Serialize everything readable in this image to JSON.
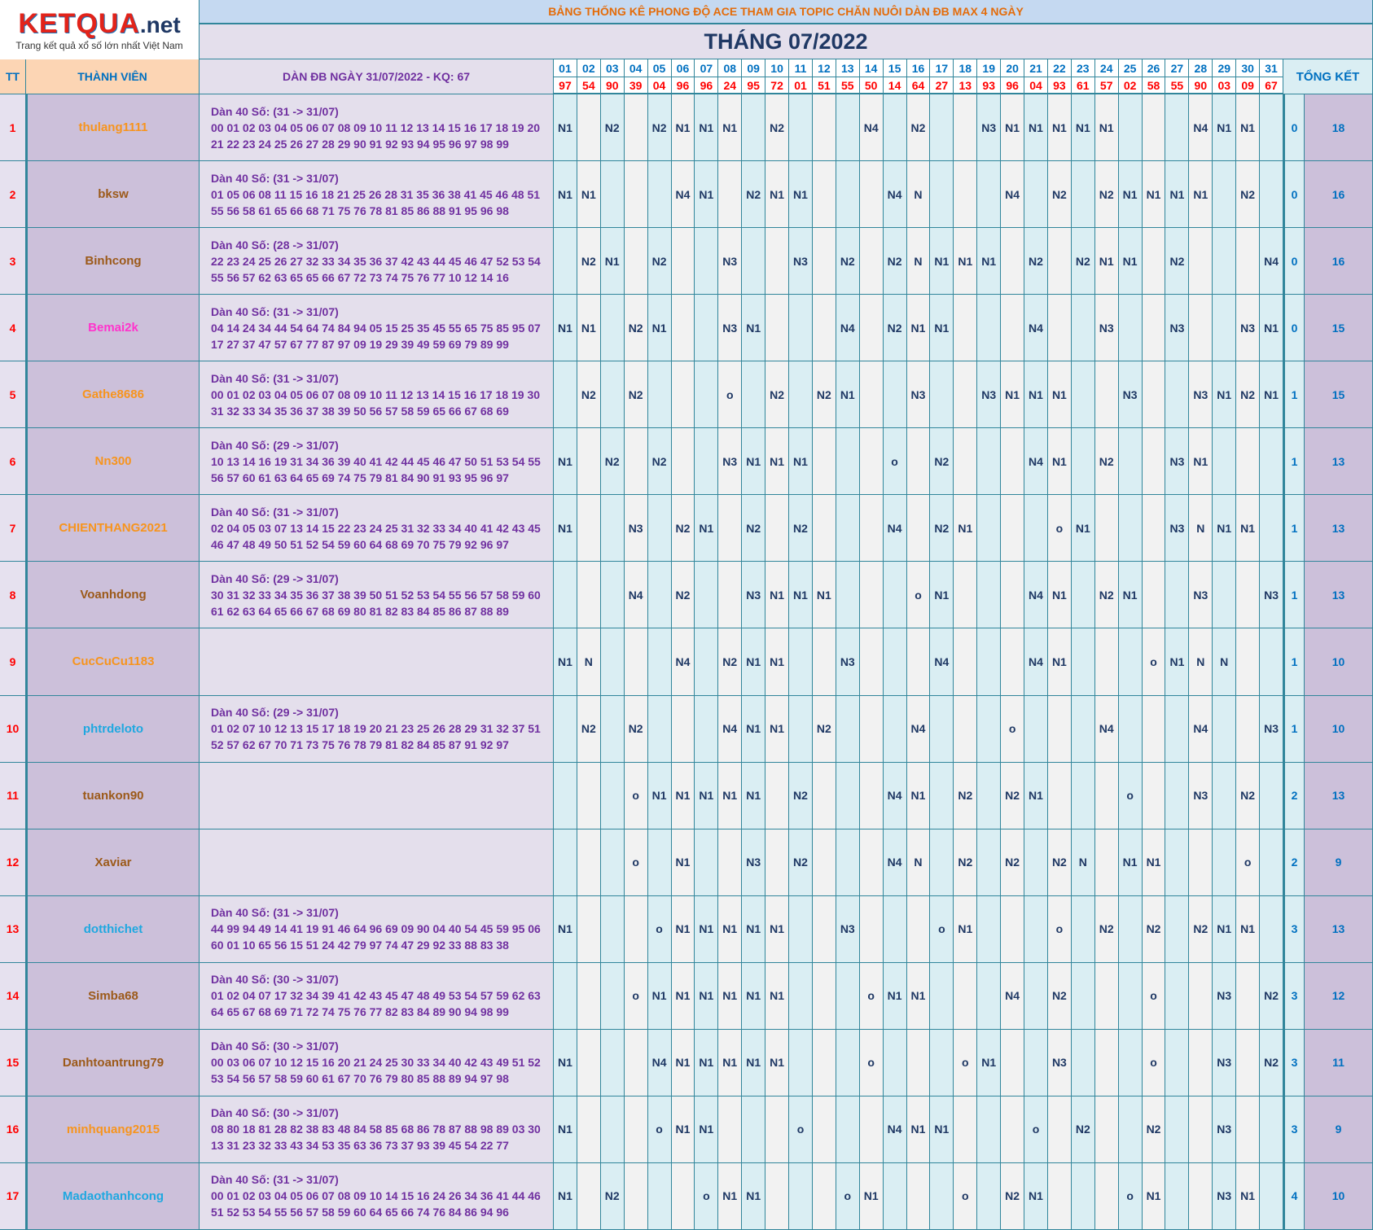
{
  "header": {
    "logo": "KETQUA",
    "logo_suffix": ".net",
    "tagline": "Trang kết quả xổ số lớn nhất Việt Nam",
    "title": "BẢNG THỐNG KÊ PHONG ĐỘ ACE THAM GIA TOPIC CHĂN NUÔI DÀN ĐB MAX 4 NGÀY",
    "month": "THÁNG 07/2022"
  },
  "table": {
    "columns": {
      "tt": "TT",
      "member": "THÀNH VIÊN",
      "dan": "DÀN ĐB NGÀY 31/07/2022 - KQ: 67",
      "summary": "TỔNG KẾT"
    },
    "days": [
      "01",
      "02",
      "03",
      "04",
      "05",
      "06",
      "07",
      "08",
      "09",
      "10",
      "11",
      "12",
      "13",
      "14",
      "15",
      "16",
      "17",
      "18",
      "19",
      "20",
      "21",
      "22",
      "23",
      "24",
      "25",
      "26",
      "27",
      "28",
      "29",
      "30",
      "31"
    ],
    "results": [
      "97",
      "54",
      "90",
      "39",
      "04",
      "96",
      "96",
      "24",
      "95",
      "72",
      "01",
      "51",
      "55",
      "50",
      "14",
      "64",
      "27",
      "13",
      "93",
      "96",
      "04",
      "93",
      "61",
      "57",
      "02",
      "58",
      "55",
      "90",
      "03",
      "09",
      "67"
    ],
    "rows": [
      {
        "tt": 1,
        "member": "thulang1111",
        "color": "#f7941d",
        "dan": [
          "Dàn 40 Số: (31 -> 31/07)",
          "00 01 02 03 04 05 06 07 08 09 10 11 12 13 14 15 16 17 18 19 20",
          "21 22 23 24 25 26 27 28 29 90 91 92 93 94 95 96 97 98 99"
        ],
        "marks": [
          "N1",
          null,
          "N2",
          null,
          "N2",
          "N1",
          "N1",
          "N1",
          null,
          "N2",
          null,
          null,
          null,
          "N4",
          null,
          "N2",
          null,
          null,
          "N3",
          "N1",
          "N1",
          "N1",
          "N1",
          "N1",
          null,
          null,
          null,
          "N4",
          "N1",
          "N1",
          null
        ],
        "miss": 0,
        "total": 18
      },
      {
        "tt": 2,
        "member": "bksw",
        "color": "#9c5a1a",
        "dan": [
          "Dàn 40 Số: (31 -> 31/07)",
          "01 05 06 08 11 15 16 18 21 25 26 28 31 35 36 38 41 45 46 48 51",
          "55 56 58 61 65 66 68 71 75 76 78 81 85 86 88 91 95 96 98"
        ],
        "marks": [
          "N1",
          "N1",
          null,
          null,
          null,
          "N4",
          "N1",
          null,
          "N2",
          "N1",
          "N1",
          null,
          null,
          null,
          "N4",
          "N",
          null,
          null,
          null,
          "N4",
          null,
          "N2",
          null,
          "N2",
          "N1",
          "N1",
          "N1",
          "N1",
          null,
          "N2",
          null
        ],
        "miss": 0,
        "total": 16
      },
      {
        "tt": 3,
        "member": "Binhcong",
        "color": "#9c5a1a",
        "dan": [
          "Dàn 40 Số: (28 -> 31/07)",
          "22 23 24 25 26 27 32 33 34 35 36 37 42 43 44 45 46 47 52 53 54",
          "55 56 57 62 63 65 65 66 67 72 73 74 75 76 77 10 12 14 16"
        ],
        "marks": [
          null,
          "N2",
          "N1",
          null,
          "N2",
          null,
          null,
          "N3",
          null,
          null,
          "N3",
          null,
          "N2",
          null,
          "N2",
          "N",
          "N1",
          "N1",
          "N1",
          null,
          "N2",
          null,
          "N2",
          "N1",
          "N1",
          null,
          "N2",
          null,
          null,
          null,
          "N4"
        ],
        "miss": 0,
        "total": 16
      },
      {
        "tt": 4,
        "member": "Bemai2k",
        "color": "#ff33cc",
        "dan": [
          "Dàn 40 Số: (31 -> 31/07)",
          "04 14 24 34 44 54 64 74 84 94 05 15 25 35 45 55 65 75 85 95 07",
          "17 27 37 47 57 67 77 87 97 09 19 29 39 49 59 69 79 89 99"
        ],
        "marks": [
          "N1",
          "N1",
          null,
          "N2",
          "N1",
          null,
          null,
          "N3",
          "N1",
          null,
          null,
          null,
          "N4",
          null,
          "N2",
          "N1",
          "N1",
          null,
          null,
          null,
          "N4",
          null,
          null,
          "N3",
          null,
          null,
          "N3",
          null,
          null,
          "N3",
          "N1"
        ],
        "miss": 0,
        "total": 15
      },
      {
        "tt": 5,
        "member": "Gathe8686",
        "color": "#f7941d",
        "dan": [
          "Dàn 40 Số: (31 -> 31/07)",
          "00 01 02 03 04 05 06 07 08 09 10 11 12 13 14 15 16 17 18 19 30",
          "31 32 33 34 35 36 37 38 39 50 56 57 58 59 65 66 67 68 69"
        ],
        "marks": [
          null,
          "N2",
          null,
          "N2",
          null,
          null,
          null,
          "o",
          null,
          "N2",
          null,
          "N2",
          "N1",
          null,
          null,
          "N3",
          null,
          null,
          "N3",
          "N1",
          "N1",
          "N1",
          null,
          null,
          "N3",
          null,
          null,
          "N3",
          "N1",
          "N2",
          "N1"
        ],
        "miss": 1,
        "total": 15
      },
      {
        "tt": 6,
        "member": "Nn300",
        "color": "#f7941d",
        "dan": [
          "Dàn 40 Số: (29 -> 31/07)",
          "10 13 14 16 19 31 34 36 39 40 41 42 44 45 46 47 50 51 53 54 55",
          "56 57 60 61 63 64 65 69 74 75 79 81 84 90 91 93 95 96 97"
        ],
        "marks": [
          "N1",
          null,
          "N2",
          null,
          "N2",
          null,
          null,
          "N3",
          "N1",
          "N1",
          "N1",
          null,
          null,
          null,
          "o",
          null,
          "N2",
          null,
          null,
          null,
          "N4",
          "N1",
          null,
          "N2",
          null,
          null,
          "N3",
          "N1",
          null,
          null,
          null
        ],
        "miss": 1,
        "total": 13
      },
      {
        "tt": 7,
        "member": "CHIENTHANG2021",
        "color": "#f7941d",
        "dan": [
          "Dàn 40 Số: (31 -> 31/07)",
          "02 04 05 03 07 13 14 15 22 23 24 25 31 32 33 34 40 41 42 43 45",
          "46 47 48 49 50 51 52 54 59 60 64 68 69 70 75 79 92 96 97"
        ],
        "marks": [
          "N1",
          null,
          null,
          "N3",
          null,
          "N2",
          "N1",
          null,
          "N2",
          null,
          "N2",
          null,
          null,
          null,
          "N4",
          null,
          "N2",
          "N1",
          null,
          null,
          null,
          "o",
          "N1",
          null,
          null,
          null,
          "N3",
          "N",
          "N1",
          "N1",
          null
        ],
        "miss": 1,
        "total": 13
      },
      {
        "tt": 8,
        "member": "Voanhdong",
        "color": "#9c5a1a",
        "dan": [
          "Dàn 40 Số: (29 -> 31/07)",
          "30 31 32 33 34 35 36 37 38 39 50 51 52 53 54 55 56 57 58 59 60",
          "61 62 63 64 65 66 67 68 69 80 81 82 83 84 85 86 87 88 89"
        ],
        "marks": [
          null,
          null,
          null,
          "N4",
          null,
          "N2",
          null,
          null,
          "N3",
          "N1",
          "N1",
          "N1",
          null,
          null,
          null,
          "o",
          "N1",
          null,
          null,
          null,
          "N4",
          "N1",
          null,
          "N2",
          "N1",
          null,
          null,
          "N3",
          null,
          null,
          "N3"
        ],
        "miss": 1,
        "total": 13
      },
      {
        "tt": 9,
        "member": "CucCuCu1183",
        "color": "#f7941d",
        "dan": null,
        "marks": [
          "N1",
          "N",
          null,
          null,
          null,
          "N4",
          null,
          "N2",
          "N1",
          "N1",
          null,
          null,
          "N3",
          null,
          null,
          null,
          "N4",
          null,
          null,
          null,
          "N4",
          "N1",
          null,
          null,
          null,
          "o",
          "N1",
          "N",
          "N",
          null,
          null
        ],
        "miss": 1,
        "total": 10
      },
      {
        "tt": 10,
        "member": "phtrdeloto",
        "color": "#1fa8e0",
        "dan": [
          "Dàn 40 Số: (29 -> 31/07)",
          "01 02 07 10 12 13 15 17 18 19 20 21 23 25 26 28 29 31 32 37 51",
          "52 57 62 67 70 71 73 75 76 78 79 81 82 84 85 87 91 92 97"
        ],
        "marks": [
          null,
          "N2",
          null,
          "N2",
          null,
          null,
          null,
          "N4",
          "N1",
          "N1",
          null,
          "N2",
          null,
          null,
          null,
          "N4",
          null,
          null,
          null,
          "o",
          null,
          null,
          null,
          "N4",
          null,
          null,
          null,
          "N4",
          null,
          null,
          "N3"
        ],
        "miss": 1,
        "total": 10
      },
      {
        "tt": 11,
        "member": "tuankon90",
        "color": "#9c5a1a",
        "dan": null,
        "marks": [
          null,
          null,
          null,
          "o",
          "N1",
          "N1",
          "N1",
          "N1",
          "N1",
          null,
          "N2",
          null,
          null,
          null,
          "N4",
          "N1",
          null,
          "N2",
          null,
          "N2",
          "N1",
          null,
          null,
          null,
          "o",
          null,
          null,
          "N3",
          null,
          "N2",
          null
        ],
        "miss": 2,
        "total": 13
      },
      {
        "tt": 12,
        "member": "Xaviar",
        "color": "#9c5a1a",
        "dan": null,
        "marks": [
          null,
          null,
          null,
          "o",
          null,
          "N1",
          null,
          null,
          "N3",
          null,
          "N2",
          null,
          null,
          null,
          "N4",
          "N",
          null,
          "N2",
          null,
          "N2",
          null,
          "N2",
          "N",
          null,
          "N1",
          "N1",
          null,
          null,
          null,
          "o",
          null
        ],
        "miss": 2,
        "total": 9
      },
      {
        "tt": 13,
        "member": "dotthichet",
        "color": "#1fa8e0",
        "dan": [
          "Dàn 40 Số: (31 -> 31/07)",
          "44 99 94 49 14 41 19 91 46 64 96 69 09 90 04 40 54 45 59 95 06",
          "60 01 10 65 56 15 51 24 42 79 97 74 47 29 92 33 88 83 38"
        ],
        "marks": [
          "N1",
          null,
          null,
          null,
          "o",
          "N1",
          "N1",
          "N1",
          "N1",
          "N1",
          null,
          null,
          "N3",
          null,
          null,
          null,
          "o",
          "N1",
          null,
          null,
          null,
          "o",
          null,
          "N2",
          null,
          "N2",
          null,
          "N2",
          "N1",
          "N1",
          null
        ],
        "miss": 3,
        "total": 13
      },
      {
        "tt": 14,
        "member": "Simba68",
        "color": "#9c5a1a",
        "dan": [
          "Dàn 40 Số: (30 -> 31/07)",
          "01 02 04 07 17 32 34 39 41 42 43 45 47 48 49 53 54 57 59 62 63",
          "64 65 67 68 69 71 72 74 75 76 77 82 83 84 89 90 94 98 99"
        ],
        "marks": [
          null,
          null,
          null,
          "o",
          "N1",
          "N1",
          "N1",
          "N1",
          "N1",
          "N1",
          null,
          null,
          null,
          "o",
          "N1",
          "N1",
          null,
          null,
          null,
          "N4",
          null,
          "N2",
          null,
          null,
          null,
          "o",
          null,
          null,
          "N3",
          null,
          "N2"
        ],
        "miss": 3,
        "total": 12
      },
      {
        "tt": 15,
        "member": "Danhtoantrung79",
        "color": "#9c5a1a",
        "dan": [
          "Dàn 40 Số: (30 -> 31/07)",
          "00 03 06 07 10 12 15 16 20 21 24 25 30 33 34 40 42 43 49 51 52",
          "53 54 56 57 58 59 60 61 67 70 76 79 80 85 88 89 94 97 98"
        ],
        "marks": [
          "N1",
          null,
          null,
          null,
          "N4",
          "N1",
          "N1",
          "N1",
          "N1",
          "N1",
          null,
          null,
          null,
          "o",
          null,
          null,
          null,
          "o",
          "N1",
          null,
          null,
          "N3",
          null,
          null,
          null,
          "o",
          null,
          null,
          "N3",
          null,
          "N2"
        ],
        "miss": 3,
        "total": 11
      },
      {
        "tt": 16,
        "member": "minhquang2015",
        "color": "#f7941d",
        "dan": [
          "Dàn 40 Số: (30 -> 31/07)",
          "08 80 18 81 28 82 38 83 48 84 58 85 68 86 78 87 88 98 89 03 30",
          "13 31 23 32 33 43 34 53 35 63 36 73 37 93 39 45 54 22 77"
        ],
        "marks": [
          "N1",
          null,
          null,
          null,
          "o",
          "N1",
          "N1",
          null,
          null,
          null,
          "o",
          null,
          null,
          null,
          "N4",
          "N1",
          "N1",
          null,
          null,
          null,
          "o",
          null,
          "N2",
          null,
          null,
          "N2",
          null,
          null,
          "N3",
          null,
          null
        ],
        "miss": 3,
        "total": 9
      },
      {
        "tt": 17,
        "member": "Madaothanhcong",
        "color": "#1fa8e0",
        "dan": [
          "Dàn 40 Số: (31 -> 31/07)",
          "00 01 02 03 04 05 06 07 08 09 10 14 15 16 24 26 34 36 41 44 46",
          "51 52 53 54 55 56 57 58 59 60 64 65 66 74 76 84 86 94 96"
        ],
        "marks": [
          "N1",
          null,
          "N2",
          null,
          null,
          null,
          "o",
          "N1",
          "N1",
          null,
          null,
          null,
          "o",
          "N1",
          null,
          null,
          null,
          "o",
          null,
          "N2",
          "N1",
          null,
          null,
          null,
          "o",
          "N1",
          null,
          null,
          "N3",
          "N1",
          null
        ],
        "miss": 4,
        "total": 10
      }
    ]
  }
}
